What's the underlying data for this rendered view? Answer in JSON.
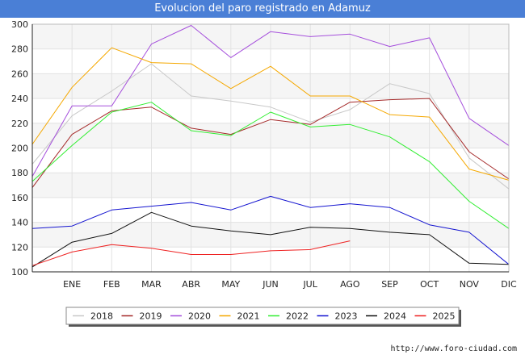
{
  "header": {
    "title": "Evolucion del paro registrado en Adamuz"
  },
  "footer": {
    "url": "http://www.foro-ciudad.com"
  },
  "chart_data": {
    "type": "line",
    "title": "Evolucion del paro registrado en Adamuz",
    "xlabel": "",
    "ylabel": "",
    "categories": [
      "",
      "ENE",
      "FEB",
      "MAR",
      "ABR",
      "MAY",
      "JUN",
      "JUL",
      "AGO",
      "SEP",
      "OCT",
      "NOV",
      "DIC"
    ],
    "ylim": [
      100,
      300
    ],
    "yticks": [
      100,
      120,
      140,
      160,
      180,
      200,
      220,
      240,
      260,
      280,
      300
    ],
    "grid": true,
    "legend_position": "bottom",
    "series": [
      {
        "name": "2018",
        "color": "#c8c8c8",
        "values": [
          187,
          226,
          246,
          268,
          242,
          238,
          233,
          221,
          231,
          252,
          244,
          192,
          167
        ]
      },
      {
        "name": "2019",
        "color": "#a52a2a",
        "values": [
          168,
          211,
          230,
          233,
          216,
          211,
          223,
          219,
          237,
          239,
          240,
          197,
          175
        ]
      },
      {
        "name": "2020",
        "color": "#a54fdc",
        "values": [
          177,
          234,
          234,
          284,
          299,
          273,
          294,
          290,
          292,
          282,
          289,
          224,
          202
        ]
      },
      {
        "name": "2021",
        "color": "#f5a800",
        "values": [
          203,
          249,
          281,
          269,
          268,
          248,
          266,
          242,
          242,
          227,
          225,
          183,
          174
        ]
      },
      {
        "name": "2022",
        "color": "#33ee33",
        "values": [
          173,
          202,
          229,
          237,
          214,
          210,
          229,
          217,
          219,
          209,
          189,
          157,
          135
        ]
      },
      {
        "name": "2023",
        "color": "#1515d0",
        "values": [
          135,
          137,
          150,
          153,
          156,
          150,
          161,
          152,
          155,
          152,
          138,
          132,
          106
        ]
      },
      {
        "name": "2024",
        "color": "#111111",
        "values": [
          104,
          124,
          131,
          148,
          137,
          133,
          130,
          136,
          135,
          132,
          130,
          107,
          106
        ]
      },
      {
        "name": "2025",
        "color": "#ee2222",
        "values": [
          105,
          116,
          122,
          119,
          114,
          114,
          117,
          118,
          125,
          null,
          null,
          null,
          null
        ]
      }
    ]
  }
}
